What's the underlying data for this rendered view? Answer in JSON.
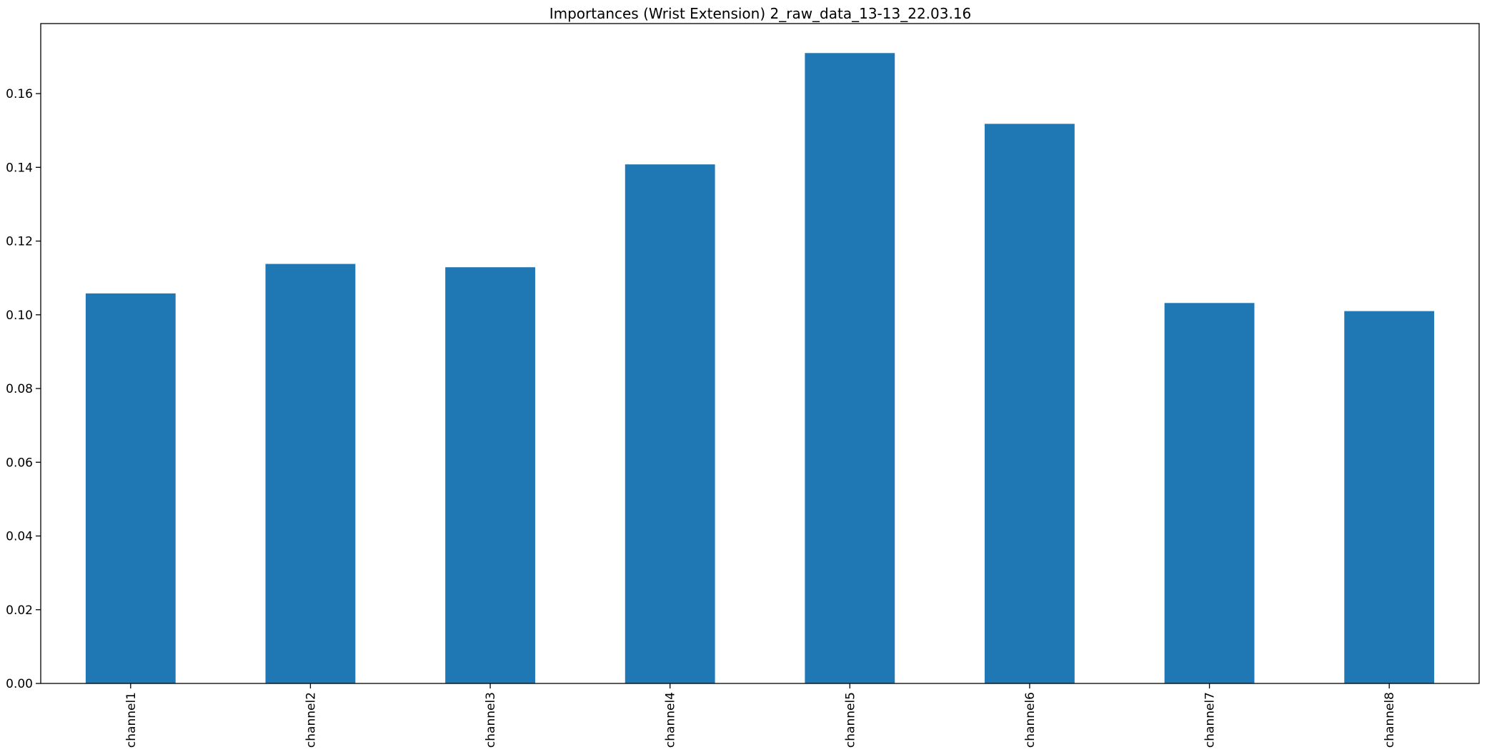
{
  "chart_data": {
    "type": "bar",
    "title": "Importances (Wrist Extension) 2_raw_data_13-13_22.03.16",
    "xlabel": "",
    "ylabel": "",
    "categories": [
      "channel1",
      "channel2",
      "channel3",
      "channel4",
      "channel5",
      "channel6",
      "channel7",
      "channel8"
    ],
    "values": [
      0.1058,
      0.1138,
      0.1129,
      0.1408,
      0.171,
      0.1518,
      0.1032,
      0.101
    ],
    "ylim": [
      0,
      0.179
    ],
    "yticks": [
      "0.00",
      "0.02",
      "0.04",
      "0.06",
      "0.08",
      "0.10",
      "0.12",
      "0.14",
      "0.16"
    ],
    "bar_color": "#1f77b4",
    "grid": false,
    "legend": "none"
  }
}
